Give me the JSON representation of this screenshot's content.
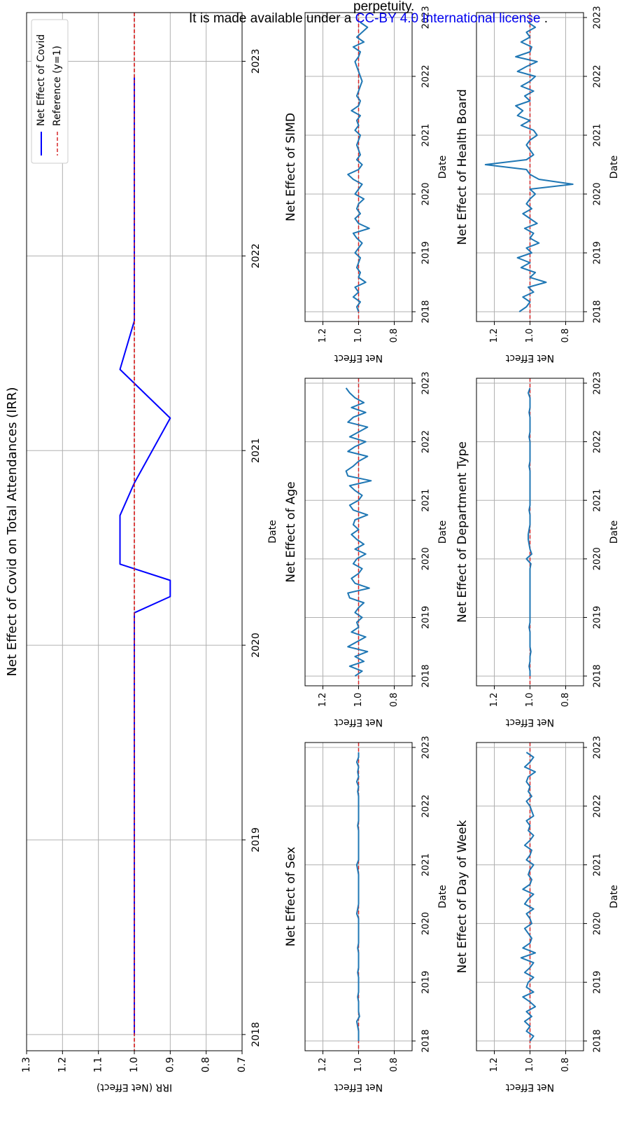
{
  "notice": {
    "line1": "perpetuity.",
    "line2_prefix": "It is made available under a",
    "line2_link": "CC-BY 4.0 International license",
    "line2_suffix": "."
  },
  "colors": {
    "main_line": "#0000ff",
    "small_line": "#1f77b4",
    "reference": "#d62728",
    "grid": "#b0b0b0"
  },
  "chart_data": [
    {
      "id": "main",
      "type": "line",
      "title": "Net Effect of Covid on Total Attendances (IRR)",
      "xlabel": "Date",
      "ylabel": "IRR (Net Effect)",
      "orientation": "rotated-90",
      "grid": true,
      "legend_placement": "top-left",
      "legend": [
        "Net Effect of Covid",
        "Reference (y=1)"
      ],
      "xlim": [
        "2017-12-01",
        "2023-04-01"
      ],
      "ylim": [
        0.7,
        1.3
      ],
      "yticks": [
        "1.3",
        "1.2",
        "1.1",
        "1.0",
        "0.9",
        "0.8",
        "0.7"
      ],
      "xticks": [
        "2018",
        "2019",
        "2020",
        "2021",
        "2022",
        "2023"
      ],
      "reference": 1.0,
      "series": [
        {
          "name": "Net Effect of Covid",
          "x": [
            "2018-01-01",
            "2020-03-01",
            "2020-04-01",
            "2020-05-01",
            "2020-06-01",
            "2020-09-01",
            "2020-11-01",
            "2021-03-01",
            "2021-06-01",
            "2021-09-01",
            "2022-12-01"
          ],
          "values": [
            1.0,
            1.0,
            0.9,
            0.9,
            1.04,
            1.04,
            1.0,
            0.9,
            1.04,
            1.0,
            1.0
          ]
        }
      ]
    },
    {
      "id": "sex",
      "type": "line",
      "title": "Net Effect of Sex",
      "xlabel": "Date",
      "ylabel": "Net Effect",
      "orientation": "rotated-90",
      "grid": true,
      "xlim": [
        "2017-11-01",
        "2023-02-01"
      ],
      "ylim": [
        0.7,
        1.3
      ],
      "yticks": [
        "1.2",
        "1.0",
        "0.8"
      ],
      "xticks": [
        "2018",
        "2019",
        "2020",
        "2021",
        "2022",
        "2023"
      ],
      "reference": 1.0,
      "series": [
        {
          "start": "2018-01-01",
          "step_months": 1,
          "values": [
            1.0,
            1.0,
            1.0,
            1.005,
            1.01,
            0.995,
            1.0,
            1.0,
            1.0,
            1.005,
            1.0,
            1.0,
            1.0,
            1.0,
            1.005,
            1.0,
            1.0,
            1.0,
            1.0,
            1.005,
            1.0,
            1.0,
            1.0,
            1.0,
            1.0,
            1.0,
            1.01,
            1.005,
            1.0,
            1.0,
            1.0,
            1.0,
            1.0,
            1.0,
            1.0,
            1.005,
            1.01,
            1.0,
            1.0,
            1.0,
            1.0,
            1.0,
            1.0,
            1.0,
            1.005,
            1.0,
            1.0,
            1.0,
            1.0,
            1.0,
            1.0,
            1.005,
            1.0,
            1.01,
            1.0,
            1.005,
            1.0,
            1.01,
            1.0,
            1.0
          ]
        }
      ]
    },
    {
      "id": "age",
      "type": "line",
      "title": "Net Effect of Age",
      "xlabel": "Date",
      "ylabel": "Net Effect",
      "orientation": "rotated-90",
      "grid": true,
      "xlim": [
        "2017-11-01",
        "2023-02-01"
      ],
      "ylim": [
        0.7,
        1.3
      ],
      "yticks": [
        "1.2",
        "1.0",
        "0.8"
      ],
      "xticks": [
        "2018",
        "2019",
        "2020",
        "2021",
        "2022",
        "2023"
      ],
      "reference": 1.0,
      "series": [
        {
          "start": "2018-01-01",
          "step_months": 1,
          "values": [
            1.02,
            0.98,
            1.05,
            0.97,
            1.02,
            0.95,
            1.06,
            1.01,
            0.96,
            1.04,
            1.0,
            1.01,
            0.98,
            1.02,
            1.0,
            0.97,
            1.05,
            1.06,
            0.94,
            1.02,
            1.04,
            1.0,
            0.98,
            1.03,
            1.01,
            0.96,
            1.02,
            0.97,
            1.01,
            1.04,
            1.0,
            1.03,
            1.02,
            0.95,
            1.03,
            1.05,
            1.0,
            0.98,
            1.02,
            1.05,
            0.93,
            1.06,
            1.07,
            1.03,
            1.0,
            0.95,
            1.06,
            1.02,
            0.96,
            1.05,
            1.0,
            0.95,
            1.06,
            1.03,
            0.96,
            1.04,
            0.97,
            1.02,
            1.05,
            1.07
          ]
        }
      ]
    },
    {
      "id": "simd",
      "type": "line",
      "title": "Net Effect of SIMD",
      "xlabel": "Date",
      "ylabel": "Net Effect",
      "orientation": "rotated-90",
      "grid": true,
      "xlim": [
        "2017-11-01",
        "2023-02-01"
      ],
      "ylim": [
        0.7,
        1.3
      ],
      "yticks": [
        "1.2",
        "1.0",
        "0.8"
      ],
      "xticks": [
        "2018",
        "2019",
        "2020",
        "2021",
        "2022",
        "2023"
      ],
      "reference": 1.0,
      "series": [
        {
          "start": "2018-01-01",
          "step_months": 1,
          "values": [
            1.0,
            1.01,
            0.99,
            1.03,
            1.0,
            1.02,
            0.96,
            1.0,
            0.99,
            1.01,
            1.0,
            0.99,
            1.02,
            1.0,
            0.98,
            1.01,
            1.03,
            0.94,
            1.0,
            1.02,
            0.99,
            1.01,
            1.0,
            0.97,
            1.02,
            1.0,
            0.98,
            1.03,
            1.06,
            1.0,
            0.98,
            1.01,
            0.99,
            1.0,
            1.01,
            1.0,
            0.99,
            1.02,
            1.0,
            1.01,
            0.99,
            1.04,
            1.0,
            0.99,
            1.01,
            1.0,
            0.99,
            0.98,
            0.99,
            1.0,
            1.01,
            1.02,
            1.0,
            0.99,
            1.03,
            0.97,
            1.01,
            0.98,
            0.95,
            0.99
          ]
        }
      ]
    },
    {
      "id": "dow",
      "type": "line",
      "title": "Net Effect of Day of Week",
      "xlabel": "Date",
      "ylabel": "Net Effect",
      "orientation": "rotated-90",
      "grid": true,
      "xlim": [
        "2017-11-01",
        "2023-02-01"
      ],
      "ylim": [
        0.7,
        1.3
      ],
      "yticks": [
        "1.2",
        "1.0",
        "0.8"
      ],
      "xticks": [
        "2018",
        "2019",
        "2020",
        "2021",
        "2022",
        "2023"
      ],
      "reference": 1.0,
      "series": [
        {
          "start": "2018-01-01",
          "step_months": 1,
          "values": [
            1.0,
            0.98,
            1.02,
            1.0,
            1.03,
            0.99,
            1.02,
            0.97,
            1.0,
            1.04,
            0.98,
            1.02,
            1.01,
            0.98,
            1.03,
            1.0,
            0.98,
            1.05,
            0.97,
            1.04,
            1.0,
            0.99,
            1.01,
            1.03,
            0.99,
            1.0,
            1.02,
            0.98,
            1.03,
            1.01,
            0.98,
            1.04,
            1.0,
            0.99,
            1.01,
            1.0,
            0.98,
            1.02,
            1.0,
            0.99,
            1.03,
            1.0,
            0.98,
            1.01,
            1.0,
            1.02,
            0.98,
            0.99,
            1.0,
            1.02,
            0.99,
            1.01,
            1.0,
            1.02,
            1.01,
            0.97,
            1.03,
            1.0,
            0.98,
            1.02
          ]
        }
      ]
    },
    {
      "id": "dept",
      "type": "line",
      "title": "Net Effect of Department Type",
      "xlabel": "Date",
      "ylabel": "Net Effect",
      "orientation": "rotated-90",
      "grid": true,
      "xlim": [
        "2017-11-01",
        "2023-02-01"
      ],
      "ylim": [
        0.7,
        1.3
      ],
      "yticks": [
        "1.2",
        "1.0",
        "0.8"
      ],
      "xticks": [
        "2018",
        "2019",
        "2020",
        "2021",
        "2022",
        "2023"
      ],
      "reference": 1.0,
      "series": [
        {
          "start": "2018-01-01",
          "step_months": 1,
          "values": [
            1.0,
            1.0,
            1.005,
            1.0,
            1.0,
            0.995,
            1.0,
            1.0,
            1.0,
            1.0,
            1.005,
            1.0,
            1.0,
            1.0,
            1.0,
            1.0,
            1.0,
            1.0,
            1.0,
            1.0,
            1.0,
            1.0,
            1.0,
            0.995,
            1.02,
            0.99,
            1.0,
            1.005,
            1.01,
            1.01,
            1.005,
            1.0,
            1.0,
            1.0,
            1.005,
            1.0,
            1.0,
            1.0,
            1.0,
            1.0,
            1.0,
            1.0,
            1.0,
            1.005,
            1.0,
            1.0,
            1.0,
            1.0,
            1.0,
            1.005,
            1.0,
            1.0,
            1.0,
            1.0,
            1.005,
            1.0,
            1.0,
            1.0,
            1.01,
            1.0
          ]
        }
      ]
    },
    {
      "id": "hb",
      "type": "line",
      "title": "Net Effect of Health Board",
      "xlabel": "Date",
      "ylabel": "Net Effect",
      "orientation": "rotated-90",
      "grid": true,
      "xlim": [
        "2017-11-01",
        "2023-02-01"
      ],
      "ylim": [
        0.7,
        1.3
      ],
      "yticks": [
        "1.2",
        "1.0",
        "0.8"
      ],
      "xticks": [
        "2018",
        "2019",
        "2020",
        "2021",
        "2022",
        "2023"
      ],
      "reference": 1.0,
      "series": [
        {
          "start": "2018-01-01",
          "step_months": 1,
          "values": [
            1.06,
            1.02,
            1.0,
            1.04,
            0.98,
            1.01,
            0.91,
            1.0,
            0.97,
            1.05,
            1.0,
            1.07,
            0.99,
            1.02,
            0.95,
            1.0,
            0.98,
            1.03,
            0.96,
            1.0,
            1.04,
            0.99,
            1.02,
            1.0,
            0.97,
            1.0,
            0.76,
            0.95,
            1.0,
            1.02,
            1.25,
            1.02,
            0.98,
            1.0,
            1.02,
            1.0,
            0.96,
            0.98,
            1.05,
            1.0,
            1.07,
            1.04,
            1.08,
            1.0,
            1.03,
            0.98,
            1.05,
            1.0,
            0.97,
            1.07,
            1.02,
            0.96,
            1.08,
            1.0,
            0.99,
            1.05,
            1.0,
            1.02,
            0.97,
            1.01
          ]
        }
      ]
    }
  ]
}
